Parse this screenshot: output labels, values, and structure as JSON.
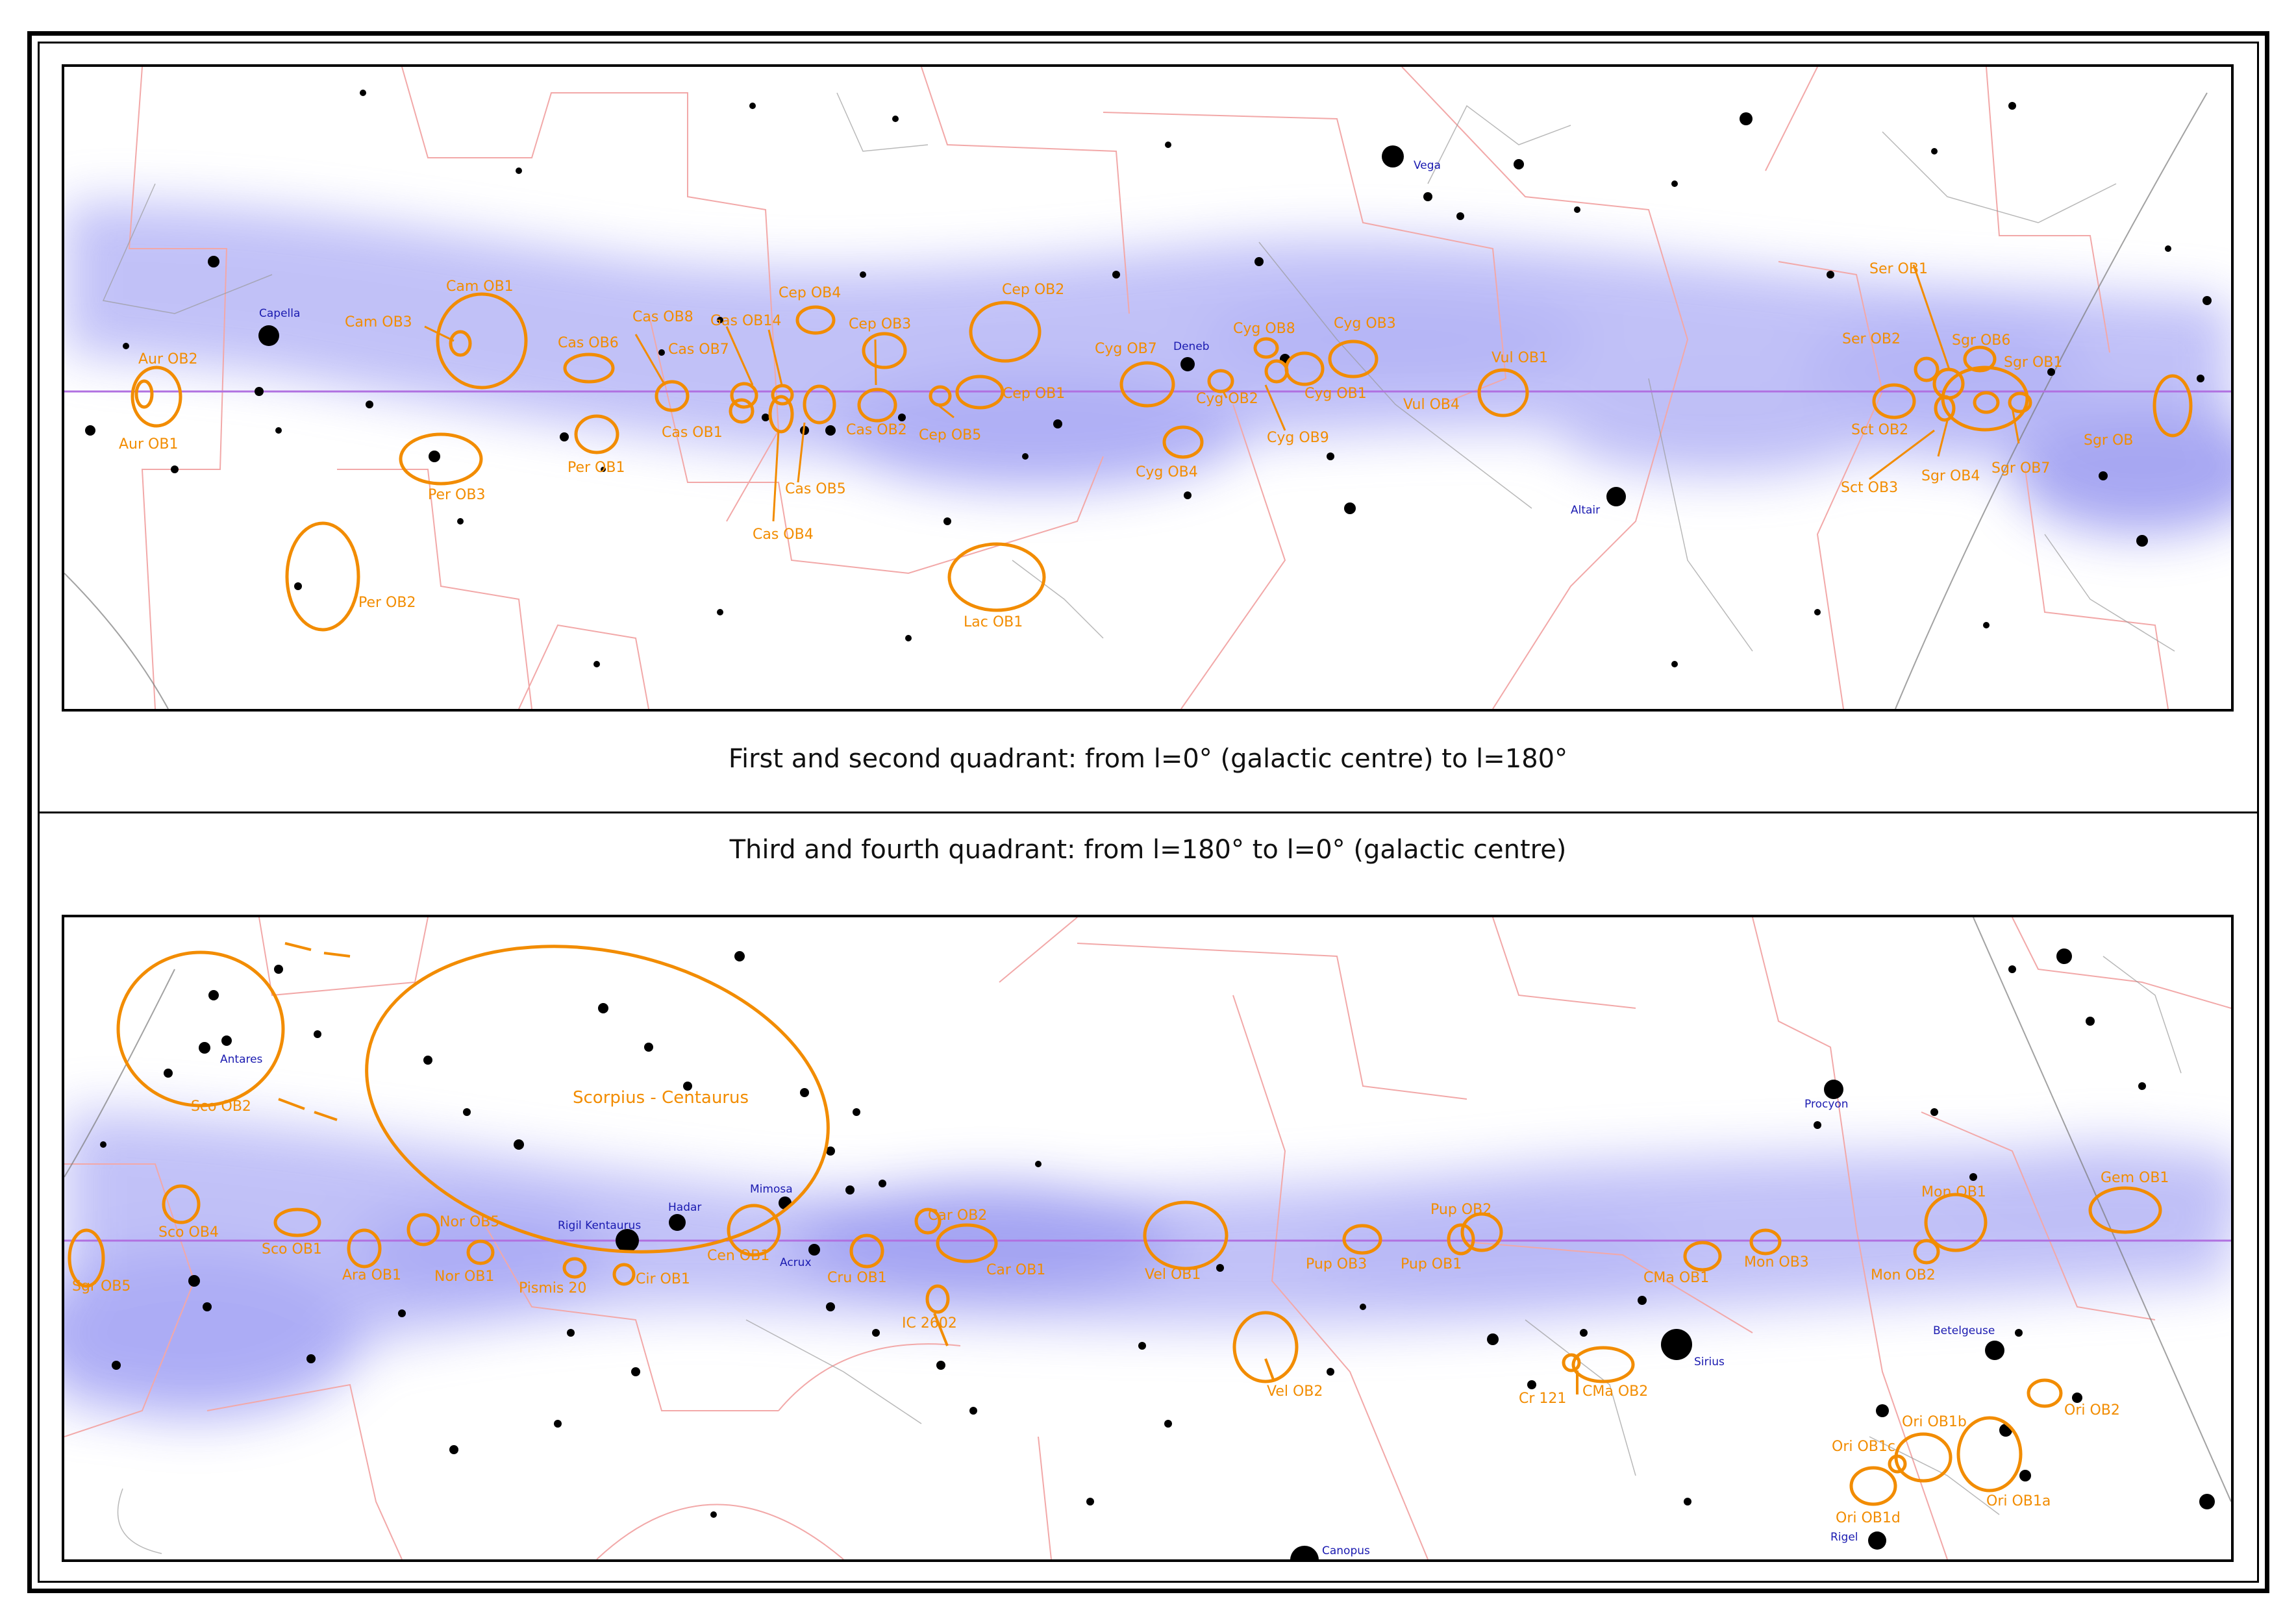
{
  "captions": {
    "top": "First and second quadrant: from l=0° (galactic centre) to l=180°",
    "bottom": "Third and fourth quadrant: from l=180° to l=0° (galactic centre)"
  },
  "colors": {
    "association": "#f28c00",
    "star_label": "#1a1ab0",
    "galactic_plane": "#b070e0",
    "constellation_boundary": "#f2a8a8",
    "milky_way": "#8f8ff2"
  },
  "top_panel": {
    "associations": [
      "Aur OB2",
      "Aur OB1",
      "Cam OB1",
      "Cam OB3",
      "Per OB3",
      "Per OB2",
      "Per OB1",
      "Cas OB6",
      "Cas OB8",
      "Cas OB7",
      "Cas OB1",
      "Gas OB14",
      "Cas OB5",
      "Cas OB4",
      "Cas OB2",
      "Cep OB4",
      "Cep OB3",
      "Cep OB2",
      "Cep OB5",
      "Cep OB1",
      "Lac OB1",
      "Cyg OB7",
      "Cyg OB8",
      "Cyg OB2",
      "Cyg OB9",
      "Cyg OB1",
      "Cyg OB3",
      "Cyg OB4",
      "Vul OB1",
      "Vul OB4",
      "Ser OB1",
      "Ser OB2",
      "Sgr OB6",
      "Sgr OB1",
      "Sct OB2",
      "Sct OB3",
      "Sgr OB4",
      "Sgr OB7",
      "Sgr OB"
    ],
    "stars": [
      "Capella",
      "Vega",
      "Deneb",
      "Altair"
    ]
  },
  "bottom_panel": {
    "associations": [
      "Sco OB2",
      "Scorpius - Centaurus",
      "Sco OB4",
      "Sgr OB5",
      "Sco OB1",
      "Ara OB1",
      "Nor OB5",
      "Nor OB1",
      "Pismis 20",
      "Cir OB1",
      "Cen OB1",
      "Cru OB1",
      "Car OB2",
      "Car OB1",
      "IC 2602",
      "Vel OB1",
      "Vel OB2",
      "Pup OB3",
      "Pup OB2",
      "Pup OB1",
      "Cr 121",
      "CMa OB2",
      "CMa OB1",
      "Mon OB3",
      "Mon OB1",
      "Mon OB2",
      "Gem OB1",
      "Ori OB2",
      "Ori OB1b",
      "Ori OB1c",
      "Ori OB1d",
      "Ori OB1a"
    ],
    "stars": [
      "Antares",
      "Rigil Kentaurus",
      "Hadar",
      "Mimosa",
      "Acrux",
      "Procyon",
      "Sirius",
      "Betelgeuse",
      "Rigel",
      "Canopus"
    ]
  }
}
